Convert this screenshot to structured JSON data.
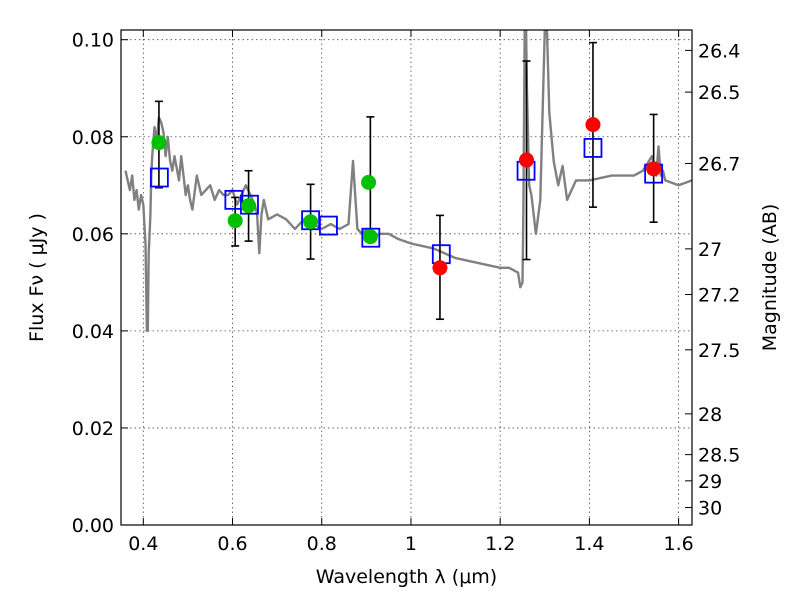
{
  "chart_data": {
    "type": "scatter",
    "xlabel": "Wavelength  λ (μm)",
    "ylabel": "Flux  Fν  ( μJy )",
    "y2label": "Magnitude (AB)",
    "xlim": [
      0.35,
      1.63
    ],
    "ylim": [
      0.0,
      0.102
    ],
    "grid": true,
    "x_ticks": [
      {
        "value": 0.4,
        "label": "0.4"
      },
      {
        "value": 0.6,
        "label": "0.6"
      },
      {
        "value": 0.8,
        "label": "0.8"
      },
      {
        "value": 1.0,
        "label": "1"
      },
      {
        "value": 1.2,
        "label": "1.2"
      },
      {
        "value": 1.4,
        "label": "1.4"
      },
      {
        "value": 1.6,
        "label": "1.6"
      }
    ],
    "y_ticks": [
      {
        "value": 0.0,
        "label": "0.00"
      },
      {
        "value": 0.02,
        "label": "0.02"
      },
      {
        "value": 0.04,
        "label": "0.04"
      },
      {
        "value": 0.06,
        "label": "0.06"
      },
      {
        "value": 0.08,
        "label": "0.08"
      },
      {
        "value": 0.1,
        "label": "0.10"
      }
    ],
    "y2_ticks": [
      {
        "flux": 0.0978,
        "label": "26.4"
      },
      {
        "flux": 0.0892,
        "label": "26.5"
      },
      {
        "flux": 0.0745,
        "label": "26.7"
      },
      {
        "flux": 0.0569,
        "label": "27"
      },
      {
        "flux": 0.0475,
        "label": "27.2"
      },
      {
        "flux": 0.0361,
        "label": "27.5"
      },
      {
        "flux": 0.0229,
        "label": "28"
      },
      {
        "flux": 0.0145,
        "label": "28.5"
      },
      {
        "flux": 0.0091,
        "label": "29"
      },
      {
        "flux": 0.0036,
        "label": "30"
      }
    ],
    "colors": {
      "model": "#808080",
      "green_points": "#00c000",
      "red_points": "#ff0000",
      "model_photometry": "#0000ff",
      "error_bars": "#000000",
      "grid": "#000000"
    },
    "model_spectrum": {
      "x": [
        0.36,
        0.37,
        0.375,
        0.38,
        0.385,
        0.39,
        0.395,
        0.4,
        0.405,
        0.408,
        0.41,
        0.412,
        0.414,
        0.416,
        0.418,
        0.42,
        0.425,
        0.43,
        0.435,
        0.44,
        0.445,
        0.45,
        0.455,
        0.46,
        0.465,
        0.47,
        0.48,
        0.485,
        0.49,
        0.495,
        0.5,
        0.505,
        0.51,
        0.52,
        0.53,
        0.54,
        0.55,
        0.56,
        0.57,
        0.58,
        0.59,
        0.6,
        0.61,
        0.62,
        0.63,
        0.64,
        0.65,
        0.655,
        0.66,
        0.665,
        0.67,
        0.68,
        0.7,
        0.72,
        0.74,
        0.76,
        0.78,
        0.8,
        0.82,
        0.84,
        0.86,
        0.87,
        0.88,
        0.89,
        0.9,
        0.91,
        0.93,
        0.95,
        0.97,
        1.0,
        1.05,
        1.1,
        1.15,
        1.2,
        1.22,
        1.24,
        1.245,
        1.25,
        1.252,
        1.255,
        1.258,
        1.26,
        1.265,
        1.27,
        1.28,
        1.29,
        1.295,
        1.3,
        1.305,
        1.31,
        1.32,
        1.33,
        1.34,
        1.35,
        1.37,
        1.4,
        1.45,
        1.5,
        1.52,
        1.54,
        1.55,
        1.555,
        1.56,
        1.565,
        1.57,
        1.6,
        1.63
      ],
      "y": [
        0.073,
        0.069,
        0.072,
        0.067,
        0.069,
        0.065,
        0.068,
        0.066,
        0.058,
        0.04,
        0.04,
        0.056,
        0.06,
        0.064,
        0.072,
        0.076,
        0.082,
        0.079,
        0.084,
        0.083,
        0.081,
        0.076,
        0.08,
        0.075,
        0.073,
        0.076,
        0.071,
        0.076,
        0.072,
        0.068,
        0.07,
        0.067,
        0.065,
        0.072,
        0.068,
        0.069,
        0.07,
        0.067,
        0.069,
        0.068,
        0.068,
        0.069,
        0.066,
        0.068,
        0.07,
        0.068,
        0.066,
        0.064,
        0.056,
        0.064,
        0.067,
        0.063,
        0.064,
        0.063,
        0.061,
        0.063,
        0.062,
        0.061,
        0.062,
        0.061,
        0.062,
        0.075,
        0.061,
        0.06,
        0.061,
        0.059,
        0.06,
        0.06,
        0.059,
        0.058,
        0.057,
        0.055,
        0.054,
        0.053,
        0.053,
        0.052,
        0.049,
        0.05,
        0.065,
        0.102,
        0.102,
        0.09,
        0.07,
        0.068,
        0.06,
        0.067,
        0.085,
        0.102,
        0.102,
        0.085,
        0.075,
        0.07,
        0.074,
        0.067,
        0.071,
        0.071,
        0.072,
        0.072,
        0.073,
        0.076,
        0.072,
        0.078,
        0.072,
        0.073,
        0.071,
        0.07,
        0.071
      ]
    },
    "photometry_green": [
      {
        "x": 0.435,
        "y": 0.0788,
        "err_low": 0.0093,
        "err_high": 0.0085
      },
      {
        "x": 0.606,
        "y": 0.0627,
        "err_low": 0.0052,
        "err_high": 0.0048
      },
      {
        "x": 0.636,
        "y": 0.0658,
        "err_low": 0.0073,
        "err_high": 0.0072
      },
      {
        "x": 0.775,
        "y": 0.0625,
        "err_low": 0.0077,
        "err_high": 0.0077
      },
      {
        "x": 0.905,
        "y": 0.0706,
        "err_low": 0.0,
        "err_high": 0.0
      },
      {
        "x": 0.909,
        "y": 0.0594,
        "err_low": 0.0,
        "err_high": 0.0247
      }
    ],
    "photometry_red": [
      {
        "x": 1.065,
        "y": 0.053,
        "err_low": 0.0106,
        "err_high": 0.0108
      },
      {
        "x": 1.259,
        "y": 0.0752,
        "err_low": 0.0205,
        "err_high": 0.0204
      },
      {
        "x": 1.408,
        "y": 0.0825,
        "err_low": 0.017,
        "err_high": 0.0169
      },
      {
        "x": 1.544,
        "y": 0.0734,
        "err_low": 0.011,
        "err_high": 0.0112
      }
    ],
    "model_photometry_blue": [
      {
        "x": 0.436,
        "y": 0.0716
      },
      {
        "x": 0.603,
        "y": 0.067
      },
      {
        "x": 0.638,
        "y": 0.066
      },
      {
        "x": 0.775,
        "y": 0.0628
      },
      {
        "x": 0.815,
        "y": 0.0617
      },
      {
        "x": 0.91,
        "y": 0.0592
      },
      {
        "x": 1.068,
        "y": 0.0558
      },
      {
        "x": 1.258,
        "y": 0.073
      },
      {
        "x": 1.408,
        "y": 0.0777
      },
      {
        "x": 1.544,
        "y": 0.0724
      }
    ]
  }
}
